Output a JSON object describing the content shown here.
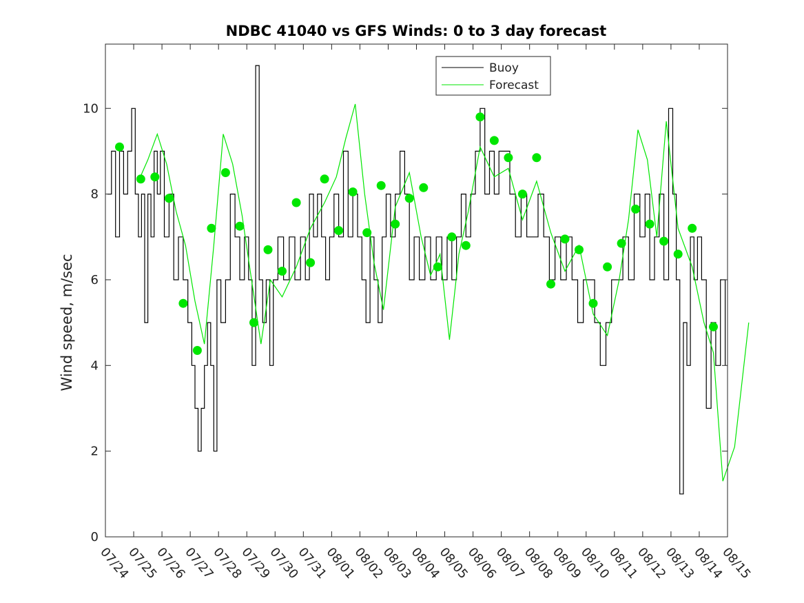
{
  "chart_data": {
    "type": "line",
    "title": "NDBC 41040 vs GFS Winds: 0 to 3 day forecast",
    "xlabel": "",
    "ylabel": "Wind speed, m/sec",
    "x_ticks": [
      "07/24",
      "07/25",
      "07/26",
      "07/27",
      "07/28",
      "07/29",
      "07/30",
      "07/31",
      "08/01",
      "08/02",
      "08/03",
      "08/04",
      "08/05",
      "08/06",
      "08/07",
      "08/08",
      "08/09",
      "08/10",
      "08/11",
      "08/12",
      "08/13",
      "08/14",
      "08/15"
    ],
    "xlim": [
      "07/24",
      "08/15"
    ],
    "ylim": [
      0,
      11.5
    ],
    "y_ticks": [
      0,
      2,
      4,
      6,
      8,
      10
    ],
    "legend": {
      "position": "top-center",
      "entries": [
        {
          "label": "Buoy",
          "color": "#000000"
        },
        {
          "label": "Forecast",
          "color": "#00e600"
        }
      ]
    },
    "series": [
      {
        "name": "Buoy",
        "color": "#000000",
        "points": [
          [
            "07/24",
            8
          ],
          [
            "07/24",
            9
          ],
          [
            "07/24",
            7
          ],
          [
            "07/24",
            9
          ],
          [
            "07/24",
            8
          ],
          [
            "07/24",
            9
          ],
          [
            "07/24",
            10
          ],
          [
            "07/25",
            8
          ],
          [
            "07/25",
            7
          ],
          [
            "07/25",
            8
          ],
          [
            "07/25",
            5
          ],
          [
            "07/25",
            8
          ],
          [
            "07/25",
            7
          ],
          [
            "07/25",
            9
          ],
          [
            "07/25",
            8
          ],
          [
            "07/25",
            9
          ],
          [
            "07/26",
            7
          ],
          [
            "07/26",
            8
          ],
          [
            "07/26",
            6
          ],
          [
            "07/26",
            7
          ],
          [
            "07/26",
            6
          ],
          [
            "07/26",
            5
          ],
          [
            "07/27",
            4
          ],
          [
            "07/27",
            3
          ],
          [
            "07/27",
            2
          ],
          [
            "07/27",
            3
          ],
          [
            "07/27",
            4
          ],
          [
            "07/27",
            5
          ],
          [
            "07/27",
            4
          ],
          [
            "07/27",
            2
          ],
          [
            "07/27",
            6
          ],
          [
            "07/28",
            5
          ],
          [
            "07/28",
            6
          ],
          [
            "07/28",
            8
          ],
          [
            "07/28",
            7
          ],
          [
            "07/28",
            6
          ],
          [
            "07/28",
            7
          ],
          [
            "07/29",
            6
          ],
          [
            "07/29",
            4
          ],
          [
            "07/29",
            11
          ],
          [
            "07/29",
            6
          ],
          [
            "07/29",
            5
          ],
          [
            "07/29",
            6
          ],
          [
            "07/29",
            4
          ],
          [
            "07/29",
            6
          ],
          [
            "07/30",
            7
          ],
          [
            "07/30",
            6
          ],
          [
            "07/30",
            7
          ],
          [
            "07/30",
            6
          ],
          [
            "07/30",
            7
          ],
          [
            "07/31",
            6
          ],
          [
            "07/31",
            8
          ],
          [
            "07/31",
            7
          ],
          [
            "07/31",
            8
          ],
          [
            "07/31",
            7
          ],
          [
            "07/31",
            6
          ],
          [
            "07/31",
            7
          ],
          [
            "08/01",
            8
          ],
          [
            "08/01",
            7
          ],
          [
            "08/01",
            9
          ],
          [
            "08/01",
            7
          ],
          [
            "08/01",
            8
          ],
          [
            "08/01",
            7
          ],
          [
            "08/02",
            6
          ],
          [
            "08/02",
            5
          ],
          [
            "08/02",
            7
          ],
          [
            "08/02",
            6
          ],
          [
            "08/02",
            5
          ],
          [
            "08/02",
            7
          ],
          [
            "08/02",
            8
          ],
          [
            "08/03",
            7
          ],
          [
            "08/03",
            8
          ],
          [
            "08/03",
            9
          ],
          [
            "08/03",
            8
          ],
          [
            "08/03",
            6
          ],
          [
            "08/03",
            7
          ],
          [
            "08/04",
            6
          ],
          [
            "08/04",
            7
          ],
          [
            "08/04",
            6
          ],
          [
            "08/04",
            7
          ],
          [
            "08/04",
            6
          ],
          [
            "08/05",
            7
          ],
          [
            "08/05",
            6
          ],
          [
            "08/05",
            7
          ],
          [
            "08/05",
            8
          ],
          [
            "08/05",
            7
          ],
          [
            "08/05",
            8
          ],
          [
            "08/06",
            9
          ],
          [
            "08/06",
            10
          ],
          [
            "08/06",
            8
          ],
          [
            "08/06",
            9
          ],
          [
            "08/06",
            8
          ],
          [
            "08/06",
            9
          ],
          [
            "08/07",
            9
          ],
          [
            "08/07",
            8
          ],
          [
            "08/07",
            7
          ],
          [
            "08/07",
            8
          ],
          [
            "08/07",
            7
          ],
          [
            "08/08",
            7
          ],
          [
            "08/08",
            8
          ],
          [
            "08/08",
            7
          ],
          [
            "08/08",
            6
          ],
          [
            "08/08",
            7
          ],
          [
            "08/09",
            6
          ],
          [
            "08/09",
            7
          ],
          [
            "08/09",
            6
          ],
          [
            "08/09",
            5
          ],
          [
            "08/09",
            6
          ],
          [
            "08/10",
            6
          ],
          [
            "08/10",
            5
          ],
          [
            "08/10",
            4
          ],
          [
            "08/10",
            5
          ],
          [
            "08/10",
            6
          ],
          [
            "08/11",
            6
          ],
          [
            "08/11",
            7
          ],
          [
            "08/11",
            6
          ],
          [
            "08/11",
            8
          ],
          [
            "08/11",
            7
          ],
          [
            "08/12",
            8
          ],
          [
            "08/12",
            6
          ],
          [
            "08/12",
            7
          ],
          [
            "08/12",
            8
          ],
          [
            "08/12",
            6
          ],
          [
            "08/12",
            10
          ],
          [
            "08/13",
            8
          ],
          [
            "08/13",
            6
          ],
          [
            "08/13",
            1
          ],
          [
            "08/13",
            5
          ],
          [
            "08/13",
            4
          ],
          [
            "08/13",
            7
          ],
          [
            "08/13",
            6
          ],
          [
            "08/13",
            7
          ],
          [
            "08/14",
            6
          ],
          [
            "08/14",
            3
          ],
          [
            "08/14",
            5
          ],
          [
            "08/14",
            4
          ],
          [
            "08/14",
            6
          ],
          [
            "08/14",
            4
          ]
        ]
      },
      {
        "name": "Forecast",
        "color": "#00e600",
        "points": [
          [
            "07/25",
            8.3
          ],
          [
            "07/25",
            8.8
          ],
          [
            "07/25",
            9.4
          ],
          [
            "07/26",
            8.7
          ],
          [
            "07/26",
            7.6
          ],
          [
            "07/26",
            6.8
          ],
          [
            "07/27",
            5.5
          ],
          [
            "07/27",
            4.5
          ],
          [
            "07/27",
            6.8
          ],
          [
            "07/28",
            9.4
          ],
          [
            "07/28",
            8.7
          ],
          [
            "07/28",
            7.5
          ],
          [
            "07/29",
            6
          ],
          [
            "07/29",
            4.5
          ],
          [
            "07/29",
            6
          ],
          [
            "07/30",
            5.6
          ],
          [
            "07/30",
            6.3
          ],
          [
            "07/31",
            7.2
          ],
          [
            "07/31",
            7.8
          ],
          [
            "08/01",
            8.4
          ],
          [
            "08/01",
            9.3
          ],
          [
            "08/01",
            10.1
          ],
          [
            "08/02",
            8
          ],
          [
            "08/02",
            6.4
          ],
          [
            "08/02",
            5.3
          ],
          [
            "08/03",
            7.7
          ],
          [
            "08/03",
            8.5
          ],
          [
            "08/04",
            7
          ],
          [
            "08/04",
            6.1
          ],
          [
            "08/04",
            6.6
          ],
          [
            "08/05",
            4.6
          ],
          [
            "08/05",
            6.6
          ],
          [
            "08/05",
            7.6
          ],
          [
            "08/06",
            9.1
          ],
          [
            "08/06",
            8.4
          ],
          [
            "08/07",
            8.6
          ],
          [
            "08/07",
            7.4
          ],
          [
            "08/08",
            8.3
          ],
          [
            "08/08",
            7.1
          ],
          [
            "08/09",
            6.2
          ],
          [
            "08/09",
            6.8
          ],
          [
            "08/10",
            5.2
          ],
          [
            "08/10",
            4.7
          ],
          [
            "08/11",
            6
          ],
          [
            "08/11",
            7.4
          ],
          [
            "08/11",
            9.5
          ],
          [
            "08/12",
            8.8
          ],
          [
            "08/12",
            7
          ],
          [
            "08/12",
            9.7
          ],
          [
            "08/13",
            7.2
          ],
          [
            "08/13",
            6.3
          ],
          [
            "08/14",
            5
          ],
          [
            "08/14",
            4.3
          ],
          [
            "08/14",
            1.3
          ],
          [
            "08/15",
            2.1
          ],
          [
            "08/15",
            5
          ]
        ]
      }
    ],
    "markers": {
      "color": "#00e600",
      "points": [
        [
          "07/24",
          9.1
        ],
        [
          "07/25",
          8.35
        ],
        [
          "07/25",
          8.4
        ],
        [
          "07/26",
          7.9
        ],
        [
          "07/26",
          5.45
        ],
        [
          "07/27",
          4.35
        ],
        [
          "07/27",
          7.2
        ],
        [
          "07/28",
          8.5
        ],
        [
          "07/28",
          7.25
        ],
        [
          "07/29",
          5
        ],
        [
          "07/29",
          6.7
        ],
        [
          "07/30",
          6.2
        ],
        [
          "07/30",
          7.8
        ],
        [
          "07/31",
          6.4
        ],
        [
          "07/31",
          8.35
        ],
        [
          "08/01",
          7.15
        ],
        [
          "08/01",
          8.05
        ],
        [
          "08/02",
          7.1
        ],
        [
          "08/02",
          8.2
        ],
        [
          "08/03",
          7.3
        ],
        [
          "08/03",
          7.9
        ],
        [
          "08/04",
          8.15
        ],
        [
          "08/04",
          6.3
        ],
        [
          "08/05",
          7
        ],
        [
          "08/05",
          6.8
        ],
        [
          "08/06",
          9.8
        ],
        [
          "08/06",
          9.25
        ],
        [
          "08/07",
          8.85
        ],
        [
          "08/07",
          8
        ],
        [
          "08/08",
          8.85
        ],
        [
          "08/08",
          5.9
        ],
        [
          "08/09",
          6.95
        ],
        [
          "08/09",
          6.7
        ],
        [
          "08/10",
          5.45
        ],
        [
          "08/10",
          6.3
        ],
        [
          "08/11",
          6.85
        ],
        [
          "08/11",
          7.65
        ],
        [
          "08/12",
          7.3
        ],
        [
          "08/12",
          6.9
        ],
        [
          "08/13",
          6.6
        ],
        [
          "08/13",
          7.2
        ],
        [
          "08/14",
          4.9
        ]
      ]
    }
  }
}
